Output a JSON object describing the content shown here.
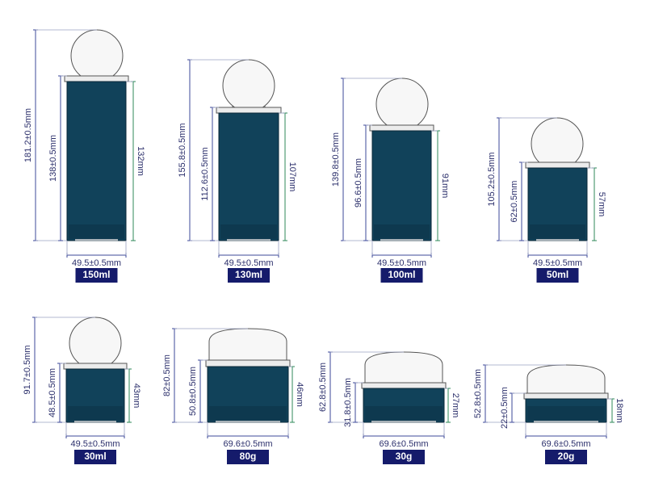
{
  "colors": {
    "jar_body": "#11425a",
    "jar_body_dark": "#0d3347",
    "cap_fill": "#f7f7f7",
    "cap_stroke": "#555555",
    "collar_fill": "#ececec",
    "dim_line": "#3d4a9a",
    "dim_inner": "#2f8a5a",
    "badge_bg": "#151b6b",
    "badge_text": "#ffffff"
  },
  "products": [
    {
      "id": "150ml",
      "label": "150ml",
      "cap": "sphere",
      "overall": "181.2±0.5mm",
      "body": "138±0.5mm",
      "inner": "132mm",
      "width": "49.5±0.5mm"
    },
    {
      "id": "130ml",
      "label": "130ml",
      "cap": "sphere",
      "overall": "155.8±0.5mm",
      "body": "112.6±0.5mm",
      "inner": "107mm",
      "width": "49.5±0.5mm"
    },
    {
      "id": "100ml",
      "label": "100ml",
      "cap": "sphere",
      "overall": "139.8±0.5mm",
      "body": "96.6±0.5mm",
      "inner": "91mm",
      "width": "49.5±0.5mm"
    },
    {
      "id": "50ml",
      "label": "50ml",
      "cap": "sphere",
      "overall": "105.2±0.5mm",
      "body": "62±0.5mm",
      "inner": "57mm",
      "width": "49.5±0.5mm"
    },
    {
      "id": "30ml",
      "label": "30ml",
      "cap": "sphere",
      "overall": "91.7±0.5mm",
      "body": "48.5±0.5mm",
      "inner": "43mm",
      "width": "49.5±0.5mm"
    },
    {
      "id": "80g",
      "label": "80g",
      "cap": "dome",
      "overall": "82±0.5mm",
      "body": "50.8±0.5mm",
      "inner": "46mm",
      "width": "69.6±0.5mm"
    },
    {
      "id": "30g",
      "label": "30g",
      "cap": "dome",
      "overall": "62.8±0.5mm",
      "body": "31.8±0.5mm",
      "inner": "27mm",
      "width": "69.6±0.5mm"
    },
    {
      "id": "20g",
      "label": "20g",
      "cap": "dome",
      "overall": "52.8±0.5mm",
      "body": "22±0.5mm",
      "inner": "18mm",
      "width": "69.6±0.5mm"
    }
  ]
}
